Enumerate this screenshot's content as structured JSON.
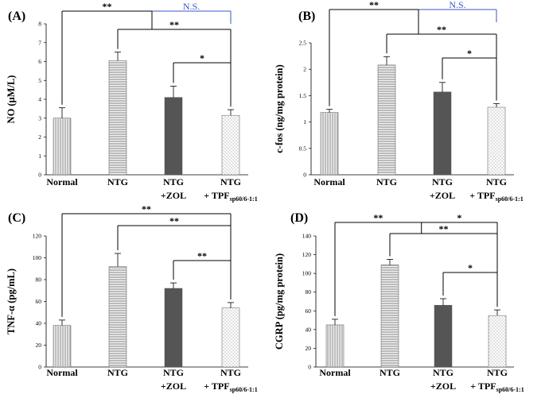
{
  "chart_data": [
    {
      "type": "bar",
      "panel": "(A)",
      "ylabel": "NO (μM/L)",
      "ylim": [
        0,
        8
      ],
      "yticks": [
        "0",
        "1",
        "2",
        "3",
        "4",
        "5",
        "6",
        "7",
        "8"
      ],
      "categories": [
        {
          "line1": "Normal",
          "line2": "",
          "sub": ""
        },
        {
          "line1": "NTG",
          "line2": "",
          "sub": ""
        },
        {
          "line1": "NTG",
          "line2": "+ZOL",
          "sub": ""
        },
        {
          "line1": "NTG",
          "line2": "+ TPF",
          "sub": "sp60/6-1:1"
        }
      ],
      "values": [
        3.0,
        6.05,
        4.1,
        3.15
      ],
      "errors": [
        0.55,
        0.45,
        0.6,
        0.3
      ],
      "patterns": [
        "vlines",
        "hlines",
        "solid",
        "dots"
      ],
      "annotations": [
        {
          "from": 0,
          "to": 3,
          "label": "**",
          "label2": "N.S.",
          "level": 1
        },
        {
          "from": 1,
          "to": 3,
          "label": "**",
          "level": 2
        },
        {
          "from": 2,
          "to": 3,
          "label": "*",
          "level": 3
        }
      ]
    },
    {
      "type": "bar",
      "panel": "(B)",
      "ylabel": "c-fos (ng/mg protein)",
      "ylim": [
        0,
        2.5
      ],
      "yticks": [
        "0",
        "0.5",
        "1",
        "1.5",
        "2",
        "2.5"
      ],
      "categories": [
        {
          "line1": "Normal",
          "line2": "",
          "sub": ""
        },
        {
          "line1": "NTG",
          "line2": "",
          "sub": ""
        },
        {
          "line1": "NTG",
          "line2": "+ZOL",
          "sub": ""
        },
        {
          "line1": "NTG",
          "line2": "+ TPF",
          "sub": "sp60/6-1:1"
        }
      ],
      "values": [
        1.18,
        2.08,
        1.57,
        1.28
      ],
      "errors": [
        0.06,
        0.16,
        0.18,
        0.07
      ],
      "patterns": [
        "vlines",
        "hlines",
        "solid",
        "dots"
      ],
      "annotations": [
        {
          "from": 0,
          "to": 3,
          "label": "**",
          "label2": "N.S.",
          "level": 1
        },
        {
          "from": 1,
          "to": 3,
          "label": "**",
          "level": 2
        },
        {
          "from": 2,
          "to": 3,
          "label": "*",
          "level": 3
        }
      ]
    },
    {
      "type": "bar",
      "panel": "(C)",
      "ylabel": "TNF-α (pg/mL)",
      "ylim": [
        0,
        120
      ],
      "yticks": [
        "0",
        "20",
        "40",
        "60",
        "80",
        "100",
        "120"
      ],
      "categories": [
        {
          "line1": "Normal",
          "line2": "",
          "sub": ""
        },
        {
          "line1": "NTG",
          "line2": "",
          "sub": ""
        },
        {
          "line1": "NTG",
          "line2": "+ZOL",
          "sub": ""
        },
        {
          "line1": "NTG",
          "line2": "+ TPF",
          "sub": "sp60/6-1:1"
        }
      ],
      "values": [
        38,
        92,
        72,
        54
      ],
      "errors": [
        5,
        12,
        5,
        5
      ],
      "patterns": [
        "vlines",
        "hlines",
        "solid",
        "dots"
      ],
      "annotations": [
        {
          "from": 0,
          "to": 3,
          "label": "**",
          "level": 1
        },
        {
          "from": 1,
          "to": 3,
          "label": "**",
          "level": 2
        },
        {
          "from": 2,
          "to": 3,
          "label": "**",
          "level": 3
        }
      ]
    },
    {
      "type": "bar",
      "panel": "(D)",
      "ylabel": "CGRP (pg/mg protein)",
      "ylim": [
        0,
        140
      ],
      "yticks": [
        "0",
        "20",
        "40",
        "60",
        "80",
        "100",
        "120",
        "140"
      ],
      "categories": [
        {
          "line1": "Normal",
          "line2": "",
          "sub": ""
        },
        {
          "line1": "NTG",
          "line2": "",
          "sub": ""
        },
        {
          "line1": "NTG",
          "line2": "+ZOL",
          "sub": ""
        },
        {
          "line1": "NTG",
          "line2": "+ TPF",
          "sub": "sp60/6-1:1"
        }
      ],
      "values": [
        45,
        109,
        66,
        55
      ],
      "errors": [
        6,
        6,
        7,
        6
      ],
      "patterns": [
        "vlines",
        "hlines",
        "solid",
        "dots"
      ],
      "annotations": [
        {
          "from": 0,
          "to": 3,
          "label": "**",
          "label2": "*",
          "level": 1
        },
        {
          "from": 1,
          "to": 3,
          "label": "**",
          "level": 2
        },
        {
          "from": 2,
          "to": 3,
          "label": "*",
          "level": 3
        }
      ]
    }
  ],
  "colors": {
    "axis": "#000000",
    "bar_solid": "#555555",
    "bar_light": "#e8e8e8",
    "pattern_stroke": "#8a8a8a",
    "ns_bracket": "#3a55c8"
  }
}
